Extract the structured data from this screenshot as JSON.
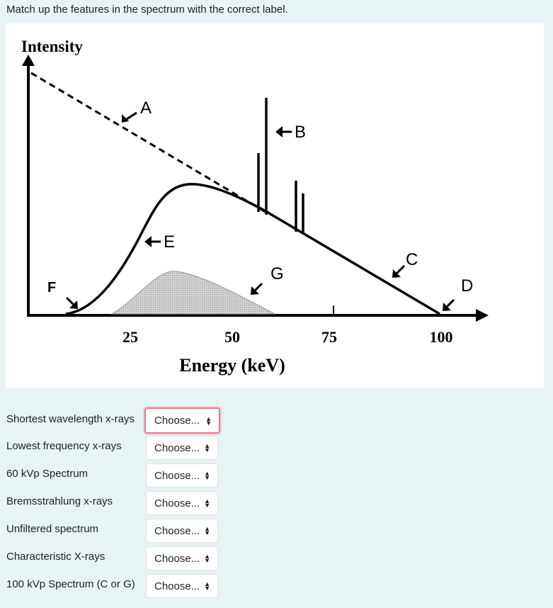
{
  "prompt": "Match up the features in the spectrum with the correct label.",
  "figure": {
    "ylabel": "Intensity",
    "xlabel": "Energy (keV)",
    "ticks": [
      "25",
      "50",
      "75",
      "100"
    ],
    "labels": [
      "A",
      "B",
      "C",
      "D",
      "E",
      "F",
      "G"
    ]
  },
  "questions": [
    {
      "label": "Shortest wavelength x-rays",
      "selected": "Choose..."
    },
    {
      "label": "Lowest frequency x-rays",
      "selected": "Choose..."
    },
    {
      "label": "60 kVp Spectrum",
      "selected": "Choose..."
    },
    {
      "label": "Bremsstrahlung x-rays",
      "selected": "Choose..."
    },
    {
      "label": "Unfiltered spectrum",
      "selected": "Choose..."
    },
    {
      "label": "Characteristic X-rays",
      "selected": "Choose..."
    },
    {
      "label": "100 kVp Spectrum (C or G)",
      "selected": "Choose..."
    }
  ]
}
